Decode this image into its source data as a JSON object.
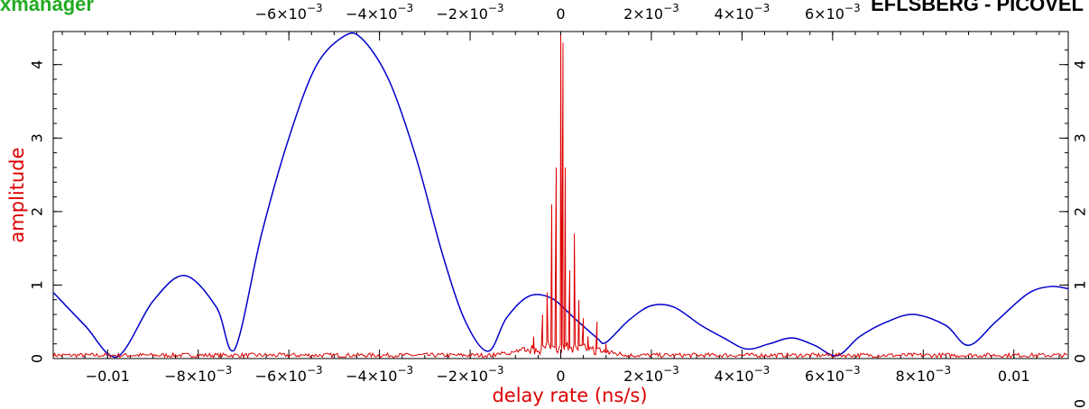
{
  "header": {
    "left_title": "xmanager",
    "right_title": "EFLSBERG - PICOVEL",
    "left_color": "#22aa22",
    "right_color": "#000000"
  },
  "chart_data": {
    "type": "line",
    "xlabel": "delay rate (ns/s)",
    "ylabel": "amplitude",
    "xlim": [
      -0.0112,
      0.0112
    ],
    "ylim": [
      0,
      4.45
    ],
    "bottom_ticks": [
      {
        "value": -0.01,
        "label": "−0.01"
      },
      {
        "value": -0.008,
        "label": "−8×10",
        "exp": "−3"
      },
      {
        "value": -0.006,
        "label": "−6×10",
        "exp": "−3"
      },
      {
        "value": -0.004,
        "label": "−4×10",
        "exp": "−3"
      },
      {
        "value": -0.002,
        "label": "−2×10",
        "exp": "−3"
      },
      {
        "value": 0,
        "label": "0"
      },
      {
        "value": 0.002,
        "label": "2×10",
        "exp": "−3"
      },
      {
        "value": 0.004,
        "label": "4×10",
        "exp": "−3"
      },
      {
        "value": 0.006,
        "label": "6×10",
        "exp": "−3"
      },
      {
        "value": 0.008,
        "label": "8×10",
        "exp": "−3"
      },
      {
        "value": 0.01,
        "label": "0.01"
      }
    ],
    "top_ticks": [
      {
        "value": -0.006,
        "label": "−6×10",
        "exp": "−3"
      },
      {
        "value": -0.004,
        "label": "−4×10",
        "exp": "−3"
      },
      {
        "value": -0.002,
        "label": "−2×10",
        "exp": "−3"
      },
      {
        "value": 0,
        "label": "0"
      },
      {
        "value": 0.002,
        "label": "2×10",
        "exp": "−3"
      },
      {
        "value": 0.004,
        "label": "4×10",
        "exp": "−3"
      },
      {
        "value": 0.006,
        "label": "6×10",
        "exp": "−3"
      }
    ],
    "y_ticks": [
      0,
      1,
      2,
      3,
      4
    ],
    "series": [
      {
        "color": "#0000cc",
        "x": [
          -0.0112,
          -0.0105,
          -0.0098,
          -0.009,
          -0.0083,
          -0.0076,
          -0.0072,
          -0.0066,
          -0.006,
          -0.0054,
          -0.0048,
          -0.0044,
          -0.0038,
          -0.0032,
          -0.0026,
          -0.0021,
          -0.0016,
          -0.0012,
          -0.0007,
          -0.0002,
          0.0003,
          0.0008,
          0.001,
          0.0015,
          0.002,
          0.0025,
          0.0031,
          0.0036,
          0.0041,
          0.0046,
          0.0051,
          0.0056,
          0.0061,
          0.0066,
          0.0072,
          0.0078,
          0.0085,
          0.009,
          0.0096,
          0.0103,
          0.0108,
          0.0112
        ],
        "y": [
          0.9,
          0.45,
          0.02,
          0.78,
          1.13,
          0.7,
          0.12,
          1.7,
          3.0,
          3.98,
          4.38,
          4.36,
          3.8,
          2.75,
          1.4,
          0.5,
          0.1,
          0.55,
          0.85,
          0.82,
          0.55,
          0.28,
          0.22,
          0.52,
          0.72,
          0.7,
          0.45,
          0.28,
          0.13,
          0.2,
          0.28,
          0.18,
          0.04,
          0.3,
          0.5,
          0.6,
          0.45,
          0.18,
          0.5,
          0.88,
          0.98,
          0.95
        ]
      },
      {
        "color": "#dd0000",
        "peak_x": [
          -0.0008,
          -0.0006,
          -0.0004,
          -0.0003,
          -0.0002,
          -0.0001,
          0,
          5e-05,
          0.0001,
          0.0002,
          0.0003,
          0.0004,
          0.0005,
          0.0006,
          0.0008,
          0.001
        ],
        "peak_y": [
          0.15,
          0.3,
          0.6,
          0.9,
          2.1,
          2.6,
          4.4,
          4.3,
          2.6,
          1.2,
          1.7,
          0.8,
          0.55,
          0.3,
          0.5,
          0.2
        ],
        "noise_level": 0.05
      }
    ],
    "right_axis_zero_label": "0"
  }
}
